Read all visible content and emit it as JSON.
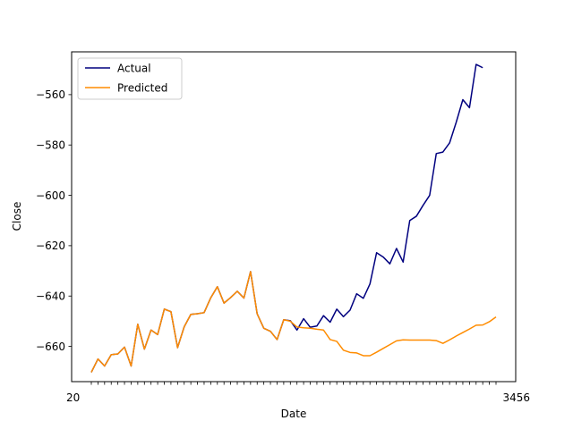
{
  "chart_data": {
    "type": "line",
    "title": "",
    "xlabel": "Date",
    "ylabel": "Close",
    "ylim": [
      -674,
      -543
    ],
    "yticks": [
      -660,
      -640,
      -620,
      -600,
      -580,
      -560
    ],
    "grid": false,
    "legend_position": "top-left",
    "x_tick_labels_note": "overlapping date labels (illegible)",
    "x_first_label_prefix": "20",
    "x_last_label_suffix": "3456",
    "series": [
      {
        "name": "Actual",
        "color": "#00007f",
        "values": [
          -670.3,
          -665.0,
          -667.8,
          -663.3,
          -663.0,
          -660.3,
          -667.8,
          -651.2,
          -661.1,
          -653.5,
          -655.3,
          -645.2,
          -646.2,
          -660.5,
          -652.2,
          -647.3,
          -647.0,
          -646.6,
          -640.7,
          -636.3,
          -642.8,
          -640.6,
          -638.1,
          -640.8,
          -630.3,
          -647.1,
          -652.8,
          -654.0,
          -657.3,
          -649.4,
          -649.8,
          -653.5,
          -649.0,
          -652.4,
          -651.9,
          -647.8,
          -650.4,
          -645.2,
          -648.2,
          -645.6,
          -639.1,
          -640.9,
          -635.2,
          -622.8,
          -624.5,
          -627.2,
          -621.1,
          -626.5,
          -610.0,
          -608.3,
          -604.0,
          -600.0,
          -583.4,
          -582.8,
          -579.2,
          -571.0,
          -562.0,
          -565.2,
          -548.0,
          -549.3
        ]
      },
      {
        "name": "Predicted",
        "color": "#ff8c00",
        "values": [
          -670.3,
          -665.0,
          -667.8,
          -663.3,
          -663.0,
          -660.3,
          -667.8,
          -651.2,
          -661.1,
          -653.5,
          -655.3,
          -645.2,
          -646.2,
          -660.5,
          -652.2,
          -647.3,
          -647.0,
          -646.6,
          -640.7,
          -636.3,
          -642.8,
          -640.6,
          -638.1,
          -640.8,
          -630.3,
          -647.1,
          -652.8,
          -654.0,
          -657.3,
          -649.4,
          -650.0,
          -652.3,
          -652.6,
          -652.8,
          -653.2,
          -653.5,
          -657.3,
          -658.0,
          -661.5,
          -662.4,
          -662.6,
          -663.7,
          -663.7,
          -662.3,
          -660.8,
          -659.3,
          -657.8,
          -657.4,
          -657.5,
          -657.5,
          -657.5,
          -657.5,
          -657.7,
          -658.8,
          -657.4,
          -655.9,
          -654.5,
          -653.1,
          -651.6,
          -651.5,
          -650.2,
          -648.3
        ]
      }
    ]
  }
}
